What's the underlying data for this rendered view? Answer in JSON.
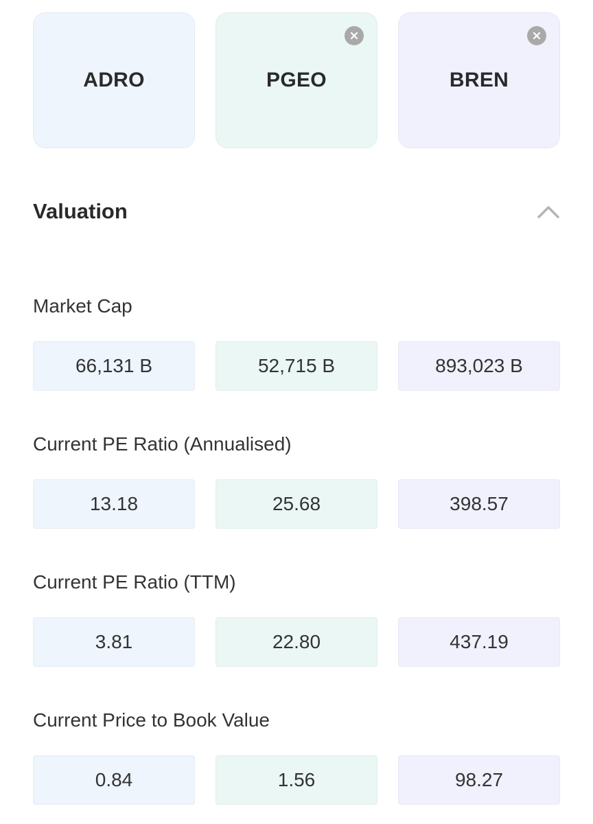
{
  "stocks": [
    {
      "ticker": "ADRO",
      "removable": false
    },
    {
      "ticker": "PGEO",
      "removable": true
    },
    {
      "ticker": "BREN",
      "removable": true
    }
  ],
  "section": {
    "title": "Valuation",
    "expanded": true,
    "icon": "chevron-up-icon"
  },
  "metrics": [
    {
      "label": "Market Cap",
      "values": [
        "66,131 B",
        "52,715 B",
        "893,023 B"
      ]
    },
    {
      "label": "Current PE Ratio (Annualised)",
      "values": [
        "13.18",
        "25.68",
        "398.57"
      ]
    },
    {
      "label": "Current PE Ratio (TTM)",
      "values": [
        "3.81",
        "22.80",
        "437.19"
      ]
    },
    {
      "label": "Current Price to Book Value",
      "values": [
        "0.84",
        "1.56",
        "98.27"
      ]
    }
  ],
  "colors": {
    "column_bg": [
      "#eef5fc",
      "#eaf7f4",
      "#f0f1fc"
    ],
    "close_button": "#a9a9a9",
    "chevron": "#b5b5b5"
  }
}
